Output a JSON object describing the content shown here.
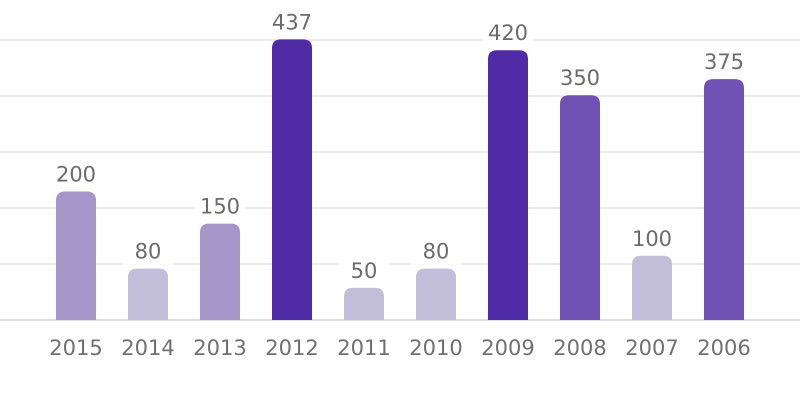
{
  "chart_data": {
    "type": "bar",
    "categories": [
      "2015",
      "2014",
      "2013",
      "2012",
      "2011",
      "2010",
      "2009",
      "2008",
      "2007",
      "2006"
    ],
    "values": [
      200,
      80,
      150,
      437,
      50,
      80,
      420,
      350,
      100,
      375
    ],
    "ylim": [
      0,
      500
    ],
    "grid": true,
    "bar_colors": [
      "#a596c9",
      "#c2bdd8",
      "#a596c9",
      "#4f2ba6",
      "#c2bdd8",
      "#c2bdd8",
      "#4f2ba6",
      "#7052b4",
      "#c2bdd8",
      "#7052b4"
    ]
  }
}
